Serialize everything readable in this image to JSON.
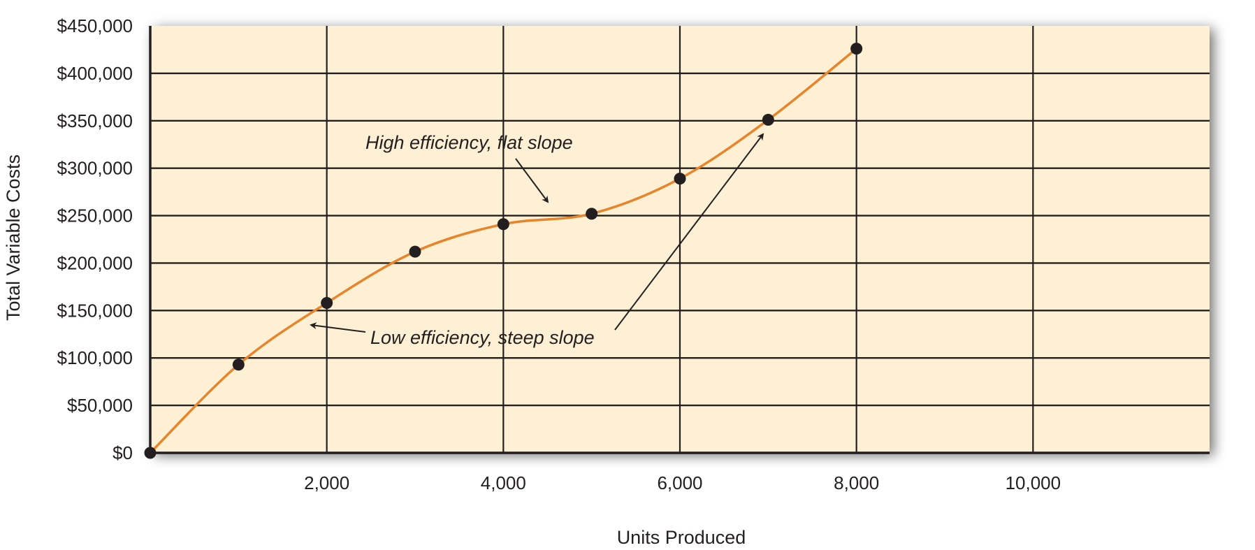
{
  "chart_data": {
    "type": "line",
    "title": "",
    "xlabel": "Units Produced",
    "ylabel": "Total Variable Costs",
    "xlim": [
      0,
      12000
    ],
    "ylim": [
      0,
      450000
    ],
    "grid": true,
    "legend": null,
    "x_ticks": [
      {
        "value": 2000,
        "label": "2,000"
      },
      {
        "value": 4000,
        "label": "4,000"
      },
      {
        "value": 6000,
        "label": "6,000"
      },
      {
        "value": 8000,
        "label": "8,000"
      },
      {
        "value": 10000,
        "label": "10,000"
      }
    ],
    "x_gridlines": [
      2000,
      4000,
      6000,
      8000,
      10000
    ],
    "y_ticks": [
      {
        "value": 0,
        "label": "$0"
      },
      {
        "value": 50000,
        "label": "$50,000"
      },
      {
        "value": 100000,
        "label": "$100,000"
      },
      {
        "value": 150000,
        "label": "$150,000"
      },
      {
        "value": 200000,
        "label": "$200,000"
      },
      {
        "value": 250000,
        "label": "$250,000"
      },
      {
        "value": 300000,
        "label": "$300,000"
      },
      {
        "value": 350000,
        "label": "$350,000"
      },
      {
        "value": 400000,
        "label": "$400,000"
      },
      {
        "value": 450000,
        "label": "$450,000"
      }
    ],
    "series": [
      {
        "name": "Total Variable Costs",
        "color": "#e8842a",
        "marker_color": "#231f20",
        "x": [
          0,
          1000,
          2000,
          3000,
          4000,
          5000,
          6000,
          7000,
          8000
        ],
        "values": [
          0,
          93000,
          158000,
          212000,
          241000,
          252000,
          289000,
          351000,
          426000
        ]
      }
    ],
    "annotations": [
      {
        "text": "High efficiency, flat slope",
        "arrow_to": [
          4550,
          262000
        ]
      },
      {
        "text": "Low efficiency, steep slope",
        "arrow_to": [
          [
            1800,
            136000
          ],
          [
            7000,
            342000
          ]
        ]
      }
    ]
  },
  "colors": {
    "plot_background": "#fef0d4",
    "grid": "#231f20",
    "line": "#e8842a",
    "marker": "#231f20"
  }
}
